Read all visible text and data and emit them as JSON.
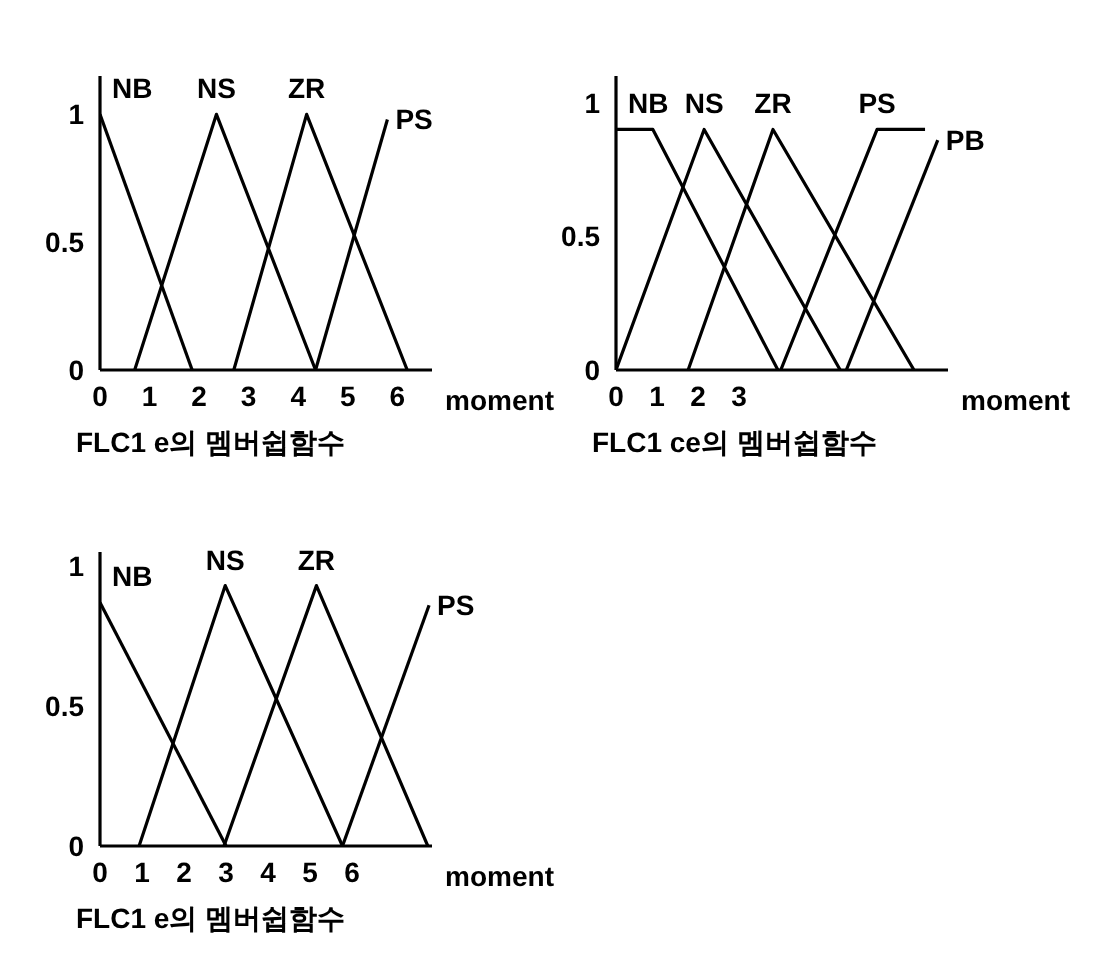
{
  "chart_data": [
    {
      "type": "line",
      "title": "FLC1 e의 멤버쉽함수",
      "xlabel": "moment",
      "xlim": [
        0,
        6.7
      ],
      "xticks": [
        0,
        1,
        2,
        3,
        4,
        5,
        6
      ],
      "ylim": [
        0,
        1.15
      ],
      "yticks": [
        0,
        0.5,
        1
      ],
      "legend": false,
      "series": [
        {
          "name": "NB",
          "color": "#000000",
          "x": [
            0,
            1.86
          ],
          "values": [
            1,
            0
          ]
        },
        {
          "name": "NS",
          "color": "#000000",
          "x": [
            0.7,
            2.35,
            4.35
          ],
          "values": [
            0,
            1,
            0
          ]
        },
        {
          "name": "ZR",
          "color": "#000000",
          "x": [
            2.7,
            4.17,
            6.2
          ],
          "values": [
            0,
            1,
            0
          ]
        },
        {
          "name": "PS",
          "color": "#000000",
          "x": [
            4.35,
            5.8
          ],
          "values": [
            0,
            0.98
          ]
        }
      ]
    },
    {
      "type": "line",
      "title": "FLC1 ce의 멤버쉽함수",
      "xlabel": "moment",
      "xlim": [
        0,
        8.1
      ],
      "xticks": [
        0,
        1,
        2,
        3
      ],
      "ylim": [
        0,
        1.1
      ],
      "yticks": [
        0,
        0.5,
        1
      ],
      "legend": false,
      "series": [
        {
          "name": "NB",
          "color": "#000000",
          "x": [
            0,
            0.9,
            3.95
          ],
          "values": [
            0.9,
            0.9,
            0
          ]
        },
        {
          "name": "NS",
          "color": "#000000",
          "x": [
            0,
            2.15,
            5.47
          ],
          "values": [
            0,
            0.9,
            0
          ]
        },
        {
          "name": "ZR",
          "color": "#000000",
          "x": [
            1.76,
            3.83,
            7.27
          ],
          "values": [
            0,
            0.9,
            0
          ]
        },
        {
          "name": "PS",
          "color": "#000000",
          "x": [
            4.02,
            6.37,
            7.54
          ],
          "values": [
            0,
            0.9,
            0.9
          ]
        },
        {
          "name": "PB",
          "color": "#000000",
          "x": [
            5.62,
            7.85
          ],
          "values": [
            0,
            0.86
          ]
        }
      ]
    },
    {
      "type": "line",
      "title": "FLC1 e의 멤버쉽함수",
      "xlabel": "moment",
      "xlim": [
        0,
        7.9
      ],
      "xticks": [
        0,
        1,
        2,
        3,
        4,
        5,
        6
      ],
      "ylim": [
        0,
        1.05
      ],
      "yticks": [
        0,
        0.5,
        1
      ],
      "legend": false,
      "series": [
        {
          "name": "NB",
          "color": "#000000",
          "x": [
            0,
            3.0
          ],
          "values": [
            0.87,
            0
          ]
        },
        {
          "name": "NS",
          "color": "#000000",
          "x": [
            0.93,
            2.98,
            5.77
          ],
          "values": [
            0,
            0.93,
            0
          ]
        },
        {
          "name": "ZR",
          "color": "#000000",
          "x": [
            2.95,
            5.15,
            7.8
          ],
          "values": [
            0,
            0.93,
            0
          ]
        },
        {
          "name": "PS",
          "color": "#000000",
          "x": [
            5.77,
            7.83
          ],
          "values": [
            0,
            0.86
          ]
        }
      ]
    }
  ]
}
